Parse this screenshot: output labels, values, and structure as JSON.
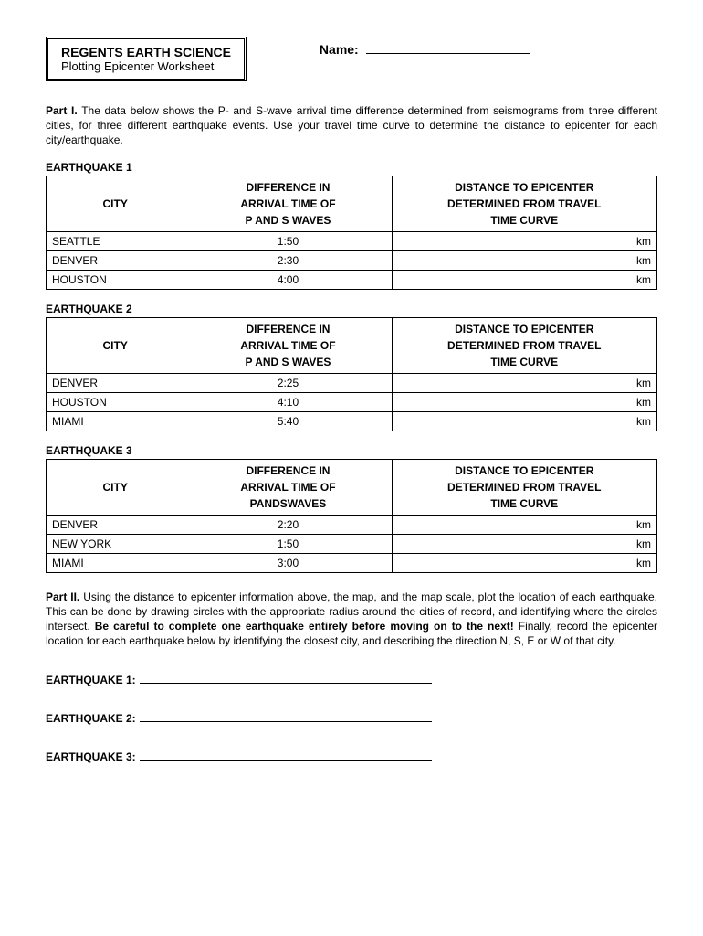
{
  "header": {
    "title_main": "REGENTS EARTH SCIENCE",
    "title_sub": "Plotting Epicenter Worksheet",
    "name_label": "Name:"
  },
  "part1": {
    "label": "Part I.",
    "text": "The data below shows the P- and S-wave arrival time difference determined from seismograms from three different cities, for three different earthquake events.  Use your travel time curve to determine the distance to epicenter for each city/earthquake."
  },
  "columns": {
    "city": "CITY",
    "diff_line1": "DIFFERENCE IN",
    "diff_line2": "ARRIVAL TIME OF",
    "diff_line3": "P AND S WAVES",
    "diff_line3_alt": "PANDSWAVES",
    "dist_line1": "DISTANCE TO EPICENTER",
    "dist_line2": "DETERMINED FROM TRAVEL",
    "dist_line3": "TIME CURVE",
    "unit": "km"
  },
  "earthquakes": [
    {
      "label": "EARTHQUAKE 1",
      "diff_col3_key": "diff_line3",
      "rows": [
        {
          "city": "SEATTLE",
          "diff": "1:50"
        },
        {
          "city": "DENVER",
          "diff": "2:30"
        },
        {
          "city": "HOUSTON",
          "diff": "4:00"
        }
      ]
    },
    {
      "label": "EARTHQUAKE 2",
      "diff_col3_key": "diff_line3",
      "rows": [
        {
          "city": "DENVER",
          "diff": "2:25"
        },
        {
          "city": "HOUSTON",
          "diff": "4:10"
        },
        {
          "city": "MIAMI",
          "diff": "5:40"
        }
      ]
    },
    {
      "label": "EARTHQUAKE 3",
      "diff_col3_key": "diff_line3_alt",
      "rows": [
        {
          "city": "DENVER",
          "diff": "2:20"
        },
        {
          "city": "NEW YORK",
          "diff": "1:50"
        },
        {
          "city": "MIAMI",
          "diff": "3:00"
        }
      ]
    }
  ],
  "part2": {
    "label": "Part II.",
    "text_a": "Using the distance to epicenter information above, the map, and the map scale, plot the location of each earthquake.  This can be done by drawing circles with the appropriate radius around the cities of record, and identifying where the circles intersect. ",
    "bold_text": "Be careful to complete one earthquake entirely before moving on to the next!",
    "text_b": "  Finally, record the epicenter location for each earthquake below by identifying the closest city, and describing the direction N, S, E or W of that city."
  },
  "answers": [
    "EARTHQUAKE 1:",
    "EARTHQUAKE 2:",
    "EARTHQUAKE 3:"
  ]
}
